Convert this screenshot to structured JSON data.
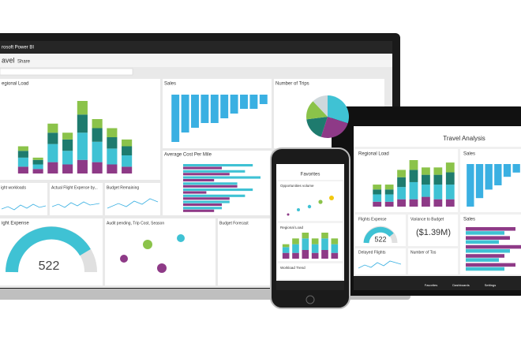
{
  "laptop": {
    "app_name": "rosoft Power BI",
    "report": "avel",
    "share": "Share",
    "tiles": {
      "regional_load": "egional Load",
      "sales": "Sales",
      "trips": "Number of Trips",
      "avg_cost": "Average Cost Per Mile",
      "workloads": "ight workloads",
      "actual_expense": "Actual Flight Expense by...",
      "budget_remaining": "Budget Remaining",
      "flight_expense": "ight Expense",
      "gauge_value": "522",
      "audit": "Audit pending, Trip Cost, Season",
      "forecast": "Budget Forecast"
    }
  },
  "phone": {
    "title": "Favorites",
    "tiles": [
      "Opportunities volume",
      "Regional Load",
      "Workload Trend"
    ]
  },
  "tablet": {
    "title": "Travel Analysis",
    "tiles": {
      "regional_load": "Regional Load",
      "sales": "Sales",
      "flight_expense": "Flights Expense",
      "variance": "Variance to Budget",
      "delayed": "Delayed Flights",
      "tos": "Number of Tos",
      "sales2": "Sales"
    },
    "variance_value": "($1.39M)",
    "gauge_value": "522",
    "nav": [
      "Favorites",
      "Dashboards",
      "Settings"
    ]
  },
  "charts": {
    "laptop_regional": {
      "type": "stacked-bar",
      "series": [
        {
          "color": "#8e3a87",
          "values": [
            3,
            2,
            5,
            4,
            6,
            5,
            4,
            3
          ]
        },
        {
          "color": "#3fc2d4",
          "values": [
            4,
            2,
            8,
            6,
            12,
            9,
            7,
            5
          ]
        },
        {
          "color": "#1e7b6e",
          "values": [
            3,
            2,
            5,
            5,
            8,
            6,
            5,
            4
          ]
        },
        {
          "color": "#8bc34a",
          "values": [
            2,
            1,
            4,
            3,
            6,
            4,
            4,
            3
          ]
        }
      ]
    },
    "laptop_sales": {
      "type": "bar",
      "color": "#3ab0e2",
      "values": [
        10,
        8,
        7,
        6,
        6,
        5,
        4,
        3,
        3,
        2
      ]
    },
    "trips_pie": {
      "type": "pie",
      "colors": [
        "#3fc2d4",
        "#8e3a87",
        "#1e7b6e",
        "#8bc34a",
        "#cfd8dc"
      ],
      "values": [
        30,
        25,
        18,
        15,
        12
      ]
    },
    "avg_cost": {
      "type": "hbar",
      "series": [
        {
          "color": "#3fc2d4",
          "values": [
            9,
            8,
            10,
            7,
            9,
            8,
            6,
            5
          ]
        },
        {
          "color": "#8e3a87",
          "values": [
            5,
            6,
            4,
            7,
            3,
            6,
            5,
            4
          ]
        }
      ]
    },
    "tablet_regional": {
      "type": "stacked-bar",
      "series": [
        {
          "color": "#8e3a87",
          "values": [
            2,
            2,
            3,
            3,
            4,
            3,
            3
          ]
        },
        {
          "color": "#3fc2d4",
          "values": [
            3,
            3,
            5,
            7,
            5,
            6,
            6
          ]
        },
        {
          "color": "#1e7b6e",
          "values": [
            2,
            2,
            4,
            5,
            4,
            4,
            5
          ]
        },
        {
          "color": "#8bc34a",
          "values": [
            2,
            2,
            3,
            4,
            3,
            3,
            4
          ]
        }
      ]
    },
    "tablet_sales": {
      "type": "bar",
      "color": "#3ab0e2",
      "values": [
        10,
        8,
        6,
        5,
        3,
        2
      ]
    },
    "tablet_hbars": {
      "type": "hbar",
      "series": [
        {
          "color": "#8e3a87",
          "values": [
            9,
            8,
            10,
            7,
            9
          ]
        },
        {
          "color": "#3fc2d4",
          "values": [
            7,
            6,
            8,
            6,
            7
          ]
        }
      ]
    },
    "phone_load": {
      "type": "stacked-bar",
      "series": [
        {
          "color": "#8e3a87",
          "values": [
            2,
            2,
            3,
            2,
            3,
            2
          ]
        },
        {
          "color": "#3fc2d4",
          "values": [
            2,
            3,
            4,
            3,
            4,
            3
          ]
        },
        {
          "color": "#8bc34a",
          "values": [
            1,
            2,
            2,
            2,
            2,
            2
          ]
        }
      ]
    }
  }
}
